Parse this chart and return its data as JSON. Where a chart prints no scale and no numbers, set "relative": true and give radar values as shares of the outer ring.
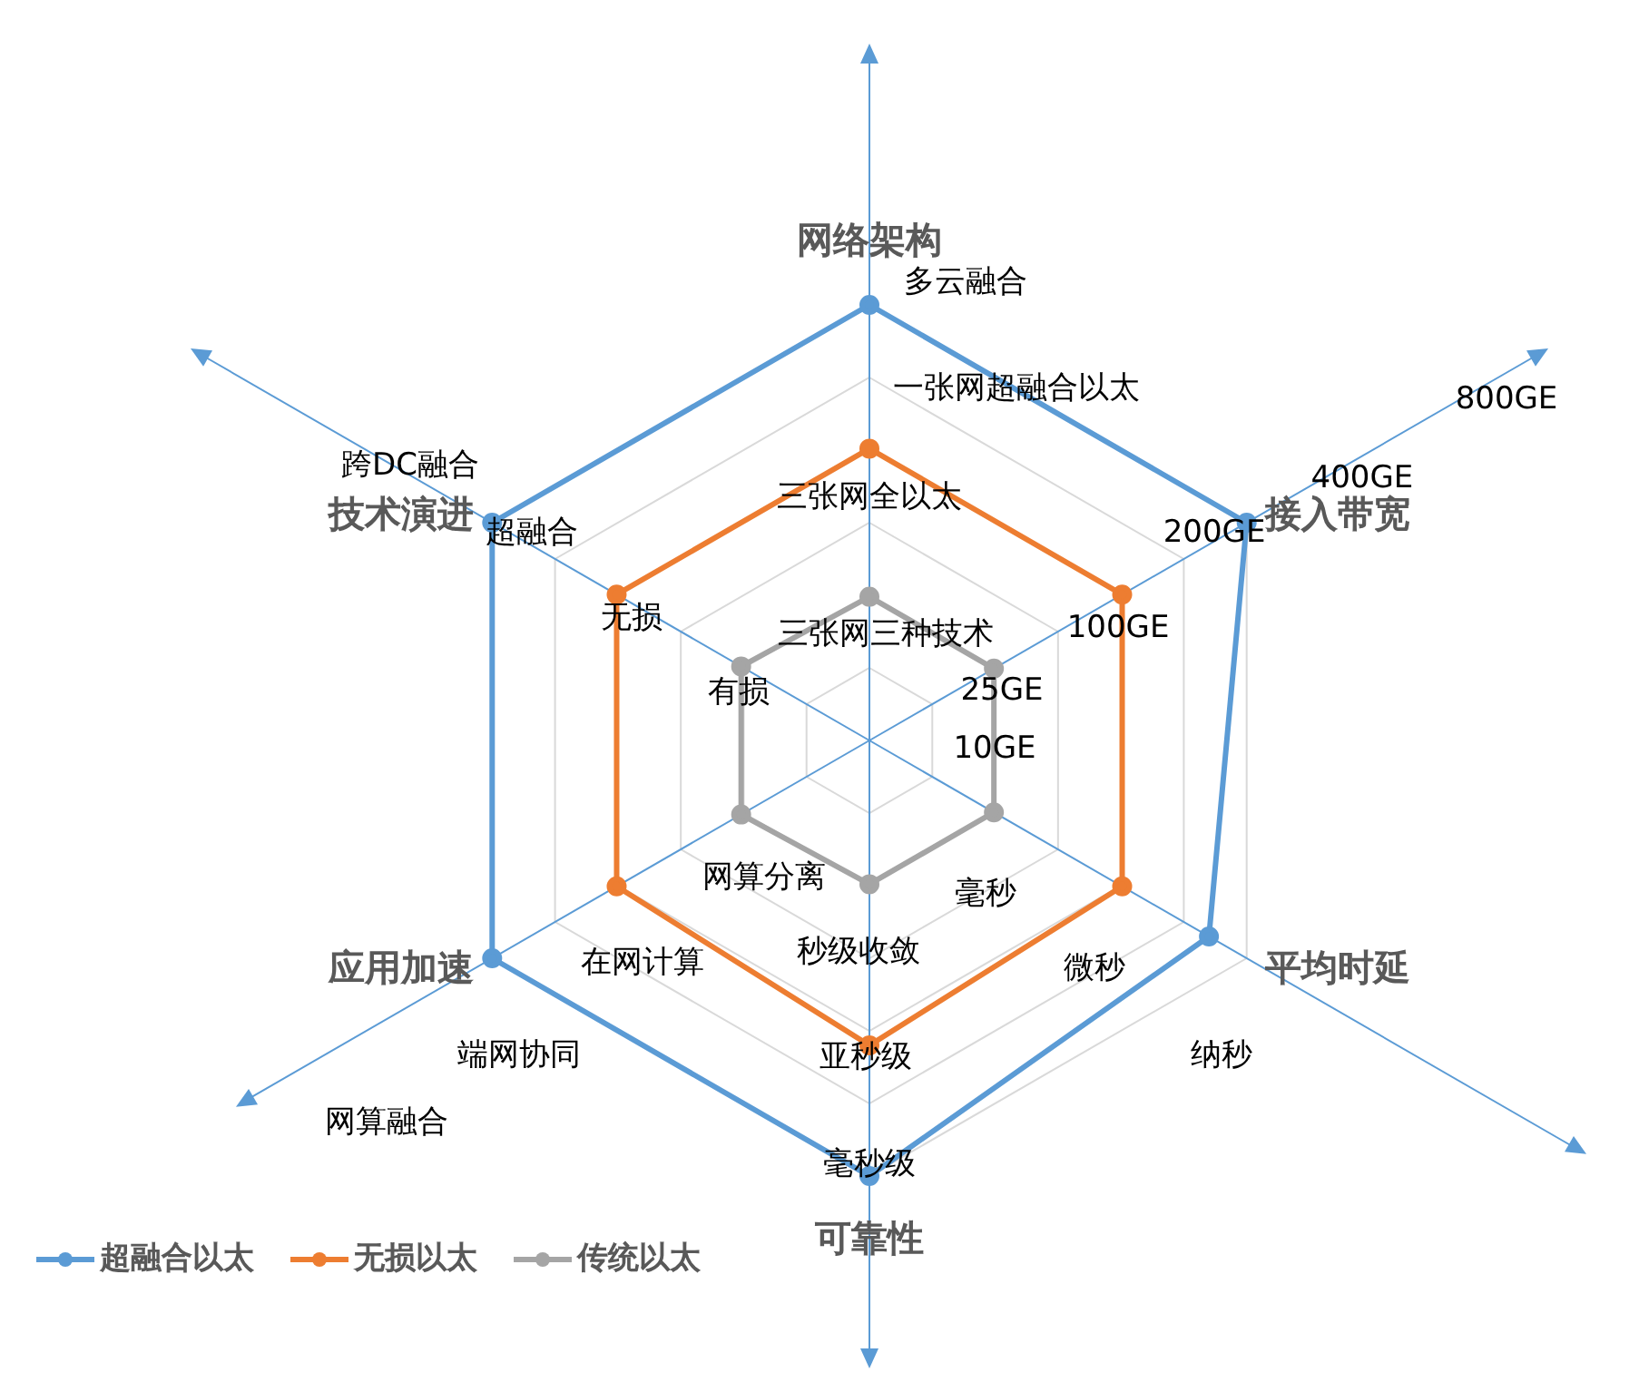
{
  "chart_data": {
    "type": "radar",
    "categories": [
      "网络架构",
      "接入带宽",
      "平均时延",
      "可靠性",
      "应用加速",
      "技术演进"
    ],
    "relative": true,
    "series": [
      {
        "name": "超融合以太",
        "color": "#5b9bd5",
        "values": [
          1,
          1,
          0.9,
          1,
          1,
          1
        ]
      },
      {
        "name": "无损以太",
        "color": "#ed7d31",
        "values": [
          0.67,
          0.67,
          0.67,
          0.7,
          0.67,
          0.67
        ]
      },
      {
        "name": "传统以太",
        "color": "#a5a5a5",
        "values": [
          0.33,
          0.33,
          0.33,
          0.33,
          0.34,
          0.34
        ]
      }
    ],
    "marker": "circle",
    "grid": true,
    "legend": "bottom left",
    "annotations": [
      "多云融合",
      "一张网超融合以太",
      "三张网全以太",
      "三张网三种技术",
      "800GE",
      "400GE",
      "200GE",
      "100GE",
      "25GE",
      "10GE",
      "纳秒",
      "微秒",
      "毫秒",
      "毫秒级",
      "亚秒级",
      "秒级收敛",
      "网算融合",
      "端网协同",
      "在网计算",
      "网算分离",
      "跨DC融合",
      "超融合",
      "无损",
      "有损"
    ]
  }
}
